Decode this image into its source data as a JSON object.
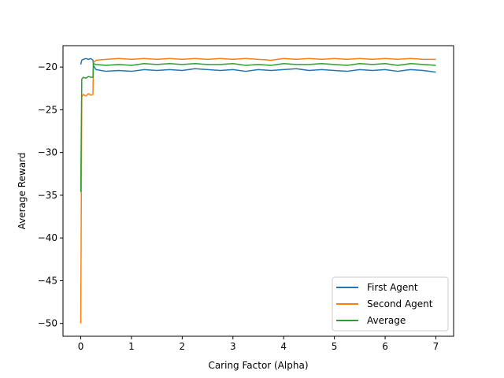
{
  "chart_data": {
    "type": "line",
    "title": "",
    "xlabel": "Caring Factor (Alpha)",
    "ylabel": "Average Reward",
    "xlim": [
      -0.35,
      7.35
    ],
    "ylim": [
      -51.5,
      -17.5
    ],
    "xticks": [
      0,
      1,
      2,
      3,
      4,
      5,
      6,
      7
    ],
    "yticks": [
      -50,
      -45,
      -40,
      -35,
      -30,
      -25,
      -20
    ],
    "grid": false,
    "legend_position": "lower-right",
    "series": [
      {
        "name": "First Agent",
        "color": "#1f77b4",
        "x": [
          0,
          0.02,
          0.05,
          0.1,
          0.15,
          0.2,
          0.24,
          0.25,
          0.3,
          0.5,
          0.75,
          1.0,
          1.25,
          1.5,
          1.75,
          2.0,
          2.25,
          2.5,
          2.75,
          3.0,
          3.25,
          3.5,
          3.75,
          4.0,
          4.25,
          4.5,
          4.75,
          5.0,
          5.25,
          5.5,
          5.75,
          6.0,
          6.25,
          6.5,
          6.75,
          7.0
        ],
        "y": [
          -19.7,
          -19.2,
          -19.1,
          -19.0,
          -19.1,
          -19.0,
          -19.2,
          -19.8,
          -20.3,
          -20.5,
          -20.4,
          -20.5,
          -20.3,
          -20.4,
          -20.3,
          -20.4,
          -20.2,
          -20.3,
          -20.4,
          -20.3,
          -20.5,
          -20.3,
          -20.4,
          -20.3,
          -20.2,
          -20.4,
          -20.3,
          -20.4,
          -20.5,
          -20.3,
          -20.4,
          -20.3,
          -20.5,
          -20.3,
          -20.4,
          -20.6
        ]
      },
      {
        "name": "Second Agent",
        "color": "#ff7f0e",
        "x": [
          0,
          0.02,
          0.05,
          0.1,
          0.15,
          0.2,
          0.24,
          0.25,
          0.3,
          0.5,
          0.75,
          1.0,
          1.25,
          1.5,
          1.75,
          2.0,
          2.25,
          2.5,
          2.75,
          3.0,
          3.25,
          3.5,
          3.75,
          4.0,
          4.25,
          4.5,
          4.75,
          5.0,
          5.25,
          5.5,
          5.75,
          6.0,
          6.25,
          6.5,
          6.75,
          7.0
        ],
        "y": [
          -50.0,
          -23.5,
          -23.2,
          -23.4,
          -23.1,
          -23.3,
          -23.2,
          -19.5,
          -19.2,
          -19.1,
          -19.0,
          -19.1,
          -19.0,
          -19.1,
          -19.0,
          -19.1,
          -19.0,
          -19.1,
          -19.0,
          -19.1,
          -19.0,
          -19.1,
          -19.2,
          -19.0,
          -19.1,
          -19.0,
          -19.1,
          -19.0,
          -19.1,
          -19.0,
          -19.1,
          -19.0,
          -19.1,
          -19.0,
          -19.1,
          -19.1
        ]
      },
      {
        "name": "Average",
        "color": "#2ca02c",
        "x": [
          0,
          0.02,
          0.05,
          0.1,
          0.15,
          0.2,
          0.24,
          0.25,
          0.3,
          0.5,
          0.75,
          1.0,
          1.25,
          1.5,
          1.75,
          2.0,
          2.25,
          2.5,
          2.75,
          3.0,
          3.25,
          3.5,
          3.75,
          4.0,
          4.25,
          4.5,
          4.75,
          5.0,
          5.25,
          5.5,
          5.75,
          6.0,
          6.25,
          6.5,
          6.75,
          7.0
        ],
        "y": [
          -34.6,
          -21.4,
          -21.2,
          -21.3,
          -21.1,
          -21.2,
          -21.2,
          -19.6,
          -19.7,
          -19.8,
          -19.7,
          -19.8,
          -19.6,
          -19.7,
          -19.6,
          -19.7,
          -19.6,
          -19.7,
          -19.7,
          -19.6,
          -19.8,
          -19.7,
          -19.8,
          -19.6,
          -19.7,
          -19.7,
          -19.6,
          -19.7,
          -19.8,
          -19.6,
          -19.7,
          -19.6,
          -19.8,
          -19.6,
          -19.7,
          -19.8
        ]
      }
    ]
  }
}
